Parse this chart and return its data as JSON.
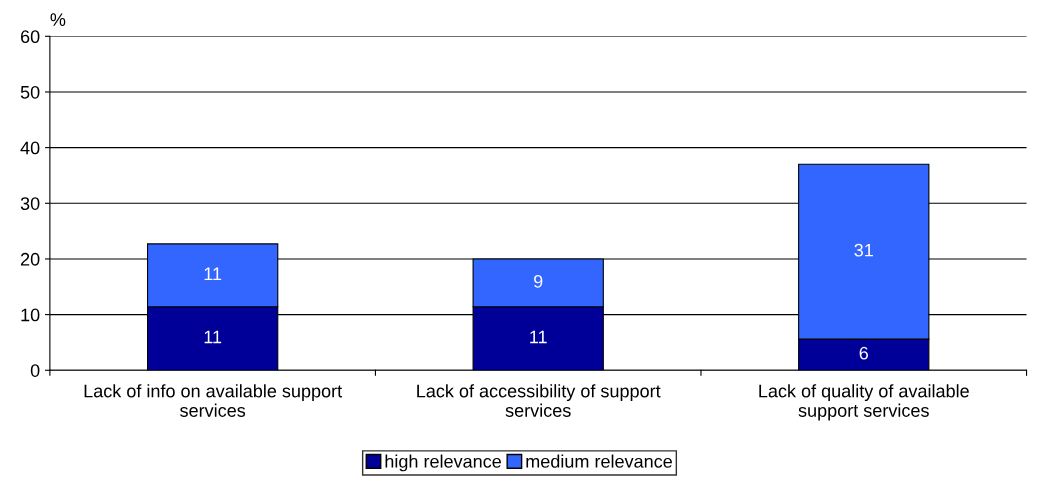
{
  "chart_data": {
    "type": "bar",
    "stacked": true,
    "ylabel": "%",
    "categories": [
      "Lack of info on available support\nservices",
      "Lack of accessibility of support\nservices",
      "Lack of quality of available\nsupport services"
    ],
    "series": [
      {
        "name": "high relevance",
        "color": "#000099",
        "values": [
          11.4,
          11.4,
          5.6
        ],
        "value_labels": [
          "11",
          "11",
          "6"
        ]
      },
      {
        "name": "medium relevance",
        "color": "#3366ff",
        "values": [
          11.3,
          8.6,
          31.4
        ],
        "value_labels": [
          "11",
          "9",
          "31"
        ]
      }
    ],
    "ylim": [
      0,
      60
    ],
    "yticks": [
      0,
      10,
      20,
      30,
      40,
      50,
      60
    ],
    "grid": "y",
    "legend": "bottom"
  }
}
